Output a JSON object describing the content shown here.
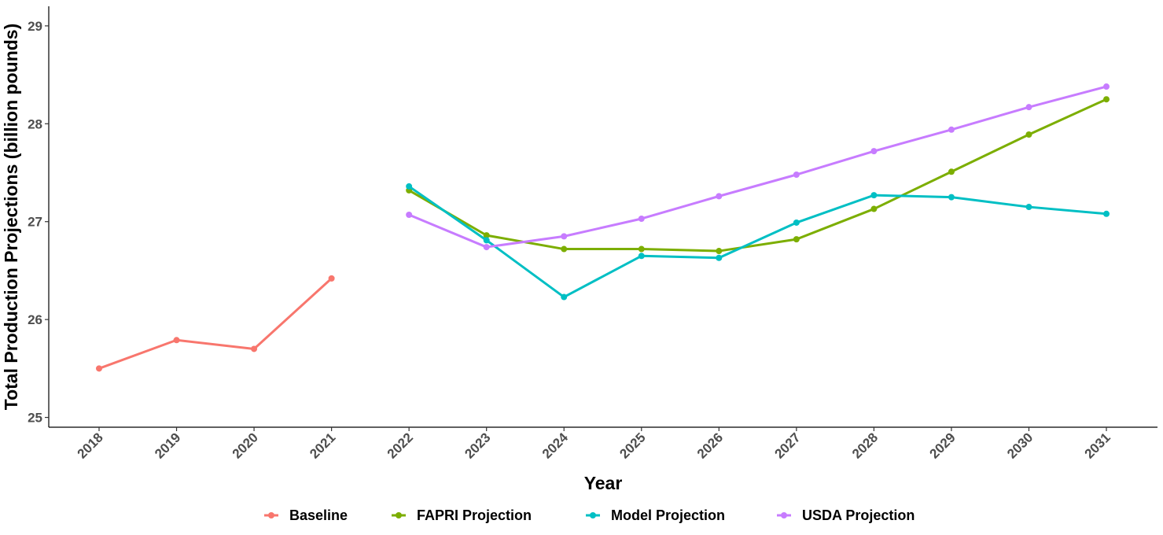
{
  "chart_data": {
    "type": "line",
    "xlabel": "Year",
    "ylabel": "Total Production Projections (billion pounds)",
    "ylim": [
      24.9,
      29.2
    ],
    "yticks": [
      25,
      26,
      27,
      28,
      29
    ],
    "x": [
      2018,
      2019,
      2020,
      2021,
      2022,
      2023,
      2024,
      2025,
      2026,
      2027,
      2028,
      2029,
      2030,
      2031
    ],
    "grid": false,
    "legend_position": "bottom",
    "series": [
      {
        "name": "Baseline",
        "color": "#F8766D",
        "points": [
          [
            2018,
            25.5
          ],
          [
            2019,
            25.79
          ],
          [
            2020,
            25.7
          ],
          [
            2021,
            26.42
          ]
        ]
      },
      {
        "name": "FAPRI Projection",
        "color": "#7CAE00",
        "points": [
          [
            2022,
            27.32
          ],
          [
            2023,
            26.86
          ],
          [
            2024,
            26.72
          ],
          [
            2025,
            26.72
          ],
          [
            2026,
            26.7
          ],
          [
            2027,
            26.82
          ],
          [
            2028,
            27.13
          ],
          [
            2029,
            27.51
          ],
          [
            2030,
            27.89
          ],
          [
            2031,
            28.25
          ]
        ]
      },
      {
        "name": "Model Projection",
        "color": "#00BFC4",
        "points": [
          [
            2022,
            27.36
          ],
          [
            2023,
            26.81
          ],
          [
            2024,
            26.23
          ],
          [
            2025,
            26.65
          ],
          [
            2026,
            26.63
          ],
          [
            2027,
            26.99
          ],
          [
            2028,
            27.27
          ],
          [
            2029,
            27.25
          ],
          [
            2030,
            27.15
          ],
          [
            2031,
            27.08
          ]
        ]
      },
      {
        "name": "USDA Projection",
        "color": "#C77CFF",
        "points": [
          [
            2022,
            27.07
          ],
          [
            2023,
            26.74
          ],
          [
            2024,
            26.85
          ],
          [
            2025,
            27.03
          ],
          [
            2026,
            27.26
          ],
          [
            2027,
            27.48
          ],
          [
            2028,
            27.72
          ],
          [
            2029,
            27.94
          ],
          [
            2030,
            28.17
          ],
          [
            2031,
            28.38
          ]
        ]
      }
    ]
  }
}
